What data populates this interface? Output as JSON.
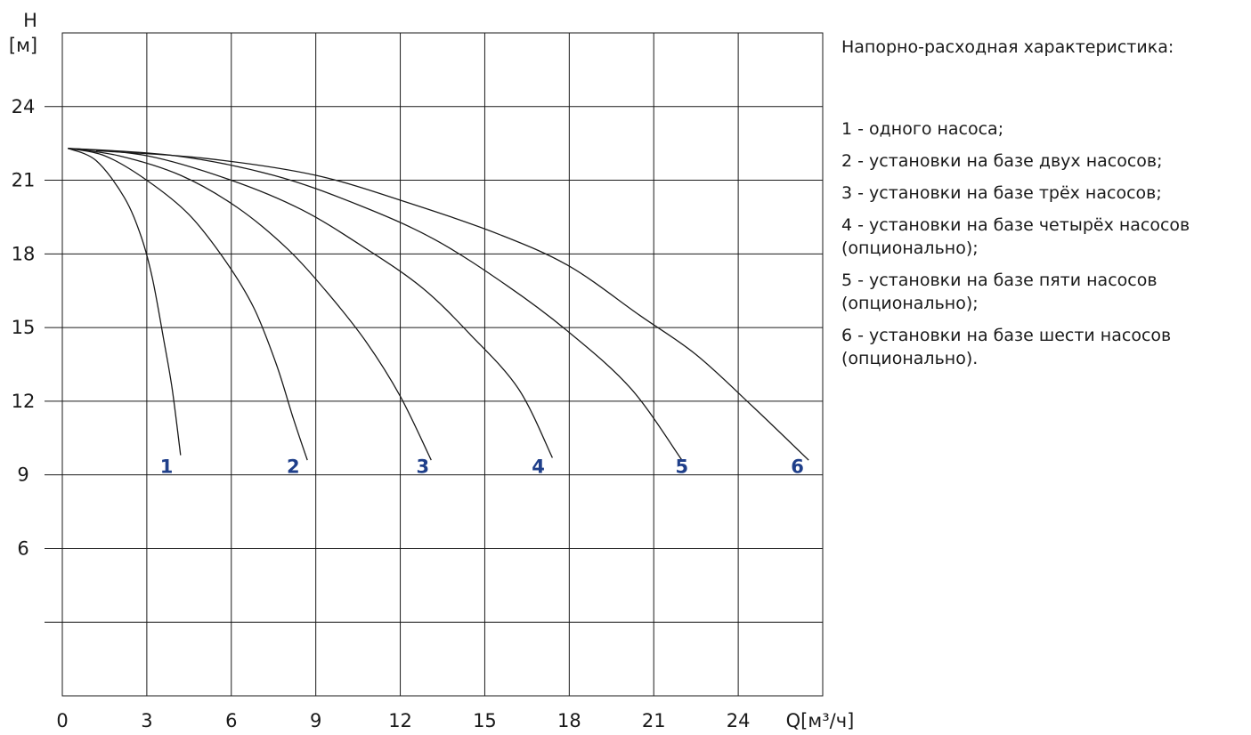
{
  "chart_data": {
    "type": "line",
    "ylabel_symbol": "H",
    "ylabel_unit": "[м]",
    "xlabel": "Q[м³/ч]",
    "xlim": [
      0,
      27
    ],
    "ylim": [
      0,
      27
    ],
    "x_ticks": [
      0,
      3,
      6,
      9,
      12,
      15,
      18,
      21,
      24
    ],
    "x_tick_labels": [
      "0",
      "3",
      "6",
      "9",
      "12",
      "15",
      "18",
      "21",
      "24"
    ],
    "y_ticks": [
      6,
      9,
      12,
      15,
      18,
      21,
      24
    ],
    "y_tick_labels": [
      "6",
      "9",
      "12",
      "15",
      "18",
      "21",
      "24"
    ],
    "grid": true,
    "series": [
      {
        "name": "1",
        "x": [
          0.2,
          1.2,
          2.2,
          2.8,
          3.2,
          3.6,
          3.9,
          4.2
        ],
        "y": [
          22.3,
          21.8,
          20.3,
          18.7,
          17.0,
          14.5,
          12.5,
          9.8
        ]
      },
      {
        "name": "2",
        "x": [
          0.2,
          1.5,
          3.0,
          4.5,
          5.8,
          6.8,
          7.6,
          8.2,
          8.7
        ],
        "y": [
          22.3,
          22.0,
          21.0,
          19.6,
          17.7,
          15.8,
          13.5,
          11.3,
          9.6
        ]
      },
      {
        "name": "3",
        "x": [
          0.2,
          2.0,
          4.2,
          6.2,
          8.0,
          9.5,
          10.8,
          12.0,
          13.1
        ],
        "y": [
          22.3,
          22.0,
          21.2,
          19.9,
          18.2,
          16.3,
          14.4,
          12.2,
          9.6
        ]
      },
      {
        "name": "4",
        "x": [
          0.2,
          3.0,
          6.0,
          8.5,
          10.8,
          12.8,
          14.5,
          16.2,
          17.4
        ],
        "y": [
          22.3,
          22.0,
          21.0,
          19.8,
          18.2,
          16.6,
          14.7,
          12.5,
          9.7
        ]
      },
      {
        "name": "5",
        "x": [
          0.2,
          4.0,
          7.5,
          10.5,
          13.2,
          15.8,
          18.0,
          20.2,
          22.0
        ],
        "y": [
          22.3,
          22.0,
          21.2,
          20.0,
          18.6,
          16.7,
          14.8,
          12.5,
          9.6
        ]
      },
      {
        "name": "6",
        "x": [
          1.2,
          5.0,
          9.0,
          12.5,
          15.5,
          18.0,
          20.5,
          22.5,
          24.5,
          26.5
        ],
        "y": [
          22.2,
          21.9,
          21.2,
          20.0,
          18.8,
          17.5,
          15.5,
          13.9,
          11.8,
          9.6
        ]
      }
    ],
    "curve_labels": [
      {
        "text": "1",
        "x": 3.7,
        "y": 9.4
      },
      {
        "text": "2",
        "x": 8.2,
        "y": 9.4
      },
      {
        "text": "3",
        "x": 12.8,
        "y": 9.4
      },
      {
        "text": "4",
        "x": 16.9,
        "y": 9.4
      },
      {
        "text": "5",
        "x": 22.0,
        "y": 9.4
      },
      {
        "text": "6",
        "x": 26.1,
        "y": 9.4
      }
    ],
    "label_color": "#1f3f8a",
    "line_color": "#1a1a1a",
    "grid_color": "#1a1a1a"
  },
  "legend": {
    "title": "Напорно-расходная характеристика:",
    "items": [
      "1 - одного насоса;",
      "2 - установки на базе двух насосов;",
      "3 - установки на базе трёх насосов;",
      "4 - установки на базе четырёх насосов (опционально);",
      "5 - установки на базе пяти насосов (опционально);",
      "6 - установки на базе шести насосов (опционально)."
    ]
  }
}
